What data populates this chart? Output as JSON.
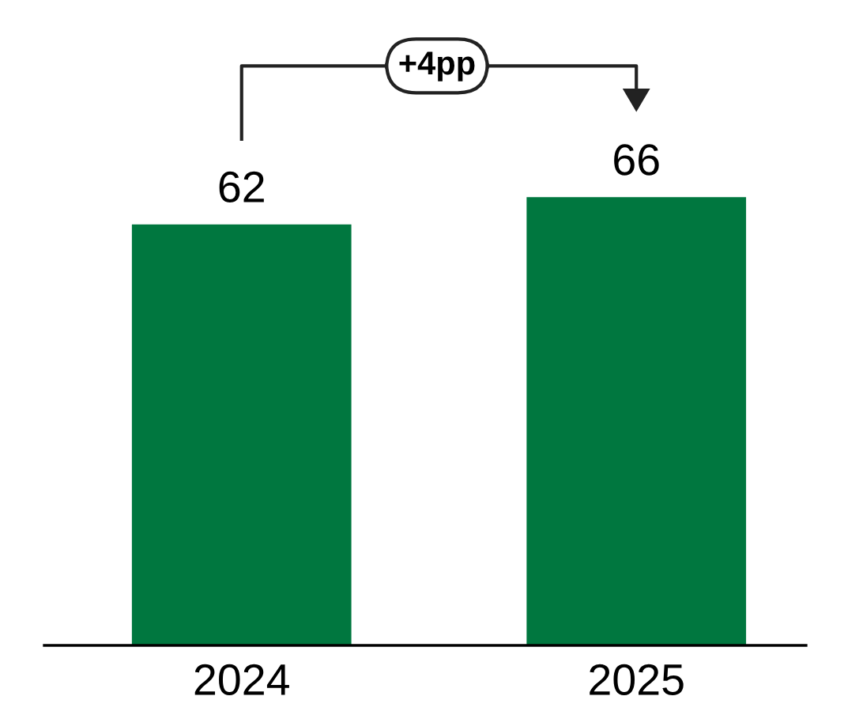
{
  "chart_data": {
    "type": "bar",
    "categories": [
      "2024",
      "2025"
    ],
    "values": [
      62,
      66
    ],
    "color": "#00773f",
    "data_labels": true,
    "grid": false,
    "legend": false,
    "tick_labels": "x",
    "annotations": [
      "+4pp"
    ]
  }
}
